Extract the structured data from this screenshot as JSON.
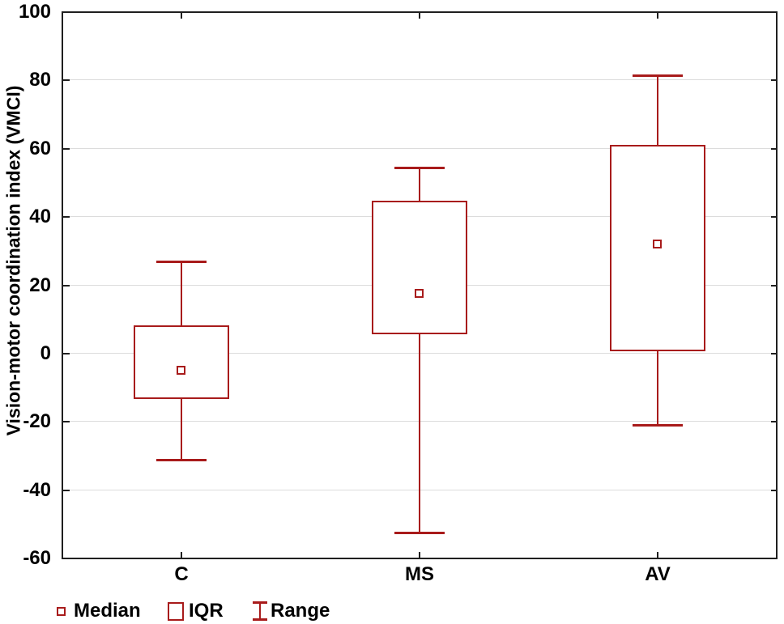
{
  "chart_data": {
    "type": "boxplot",
    "title": "",
    "xlabel": "",
    "ylabel": "Vision-motor coordination index (VMCI)",
    "categories": [
      "C",
      "MS",
      "AV"
    ],
    "series": [
      {
        "name": "VMCI",
        "color": "#a81b1b",
        "boxes": [
          {
            "category": "C",
            "min": -31,
            "q1": -13,
            "median": -5,
            "q3": 8,
            "max": 27
          },
          {
            "category": "MS",
            "min": -52.5,
            "q1": 6,
            "median": 17.5,
            "q3": 44.5,
            "max": 54.5
          },
          {
            "category": "AV",
            "min": -21,
            "q1": 1,
            "median": 32,
            "q3": 61,
            "max": 81.5
          }
        ]
      }
    ],
    "ylim": [
      -60,
      100
    ],
    "yticks": [
      100,
      80,
      60,
      40,
      20,
      0,
      -20,
      -40,
      -60
    ],
    "grid": true,
    "legend_position": "bottom-left",
    "legend_entries": [
      "Median",
      "IQR",
      "Range"
    ]
  },
  "colors": {
    "box": "#a81b1b",
    "frame": "#1f1f1f",
    "gridline": "#dcdcdc",
    "text": "#000000"
  }
}
